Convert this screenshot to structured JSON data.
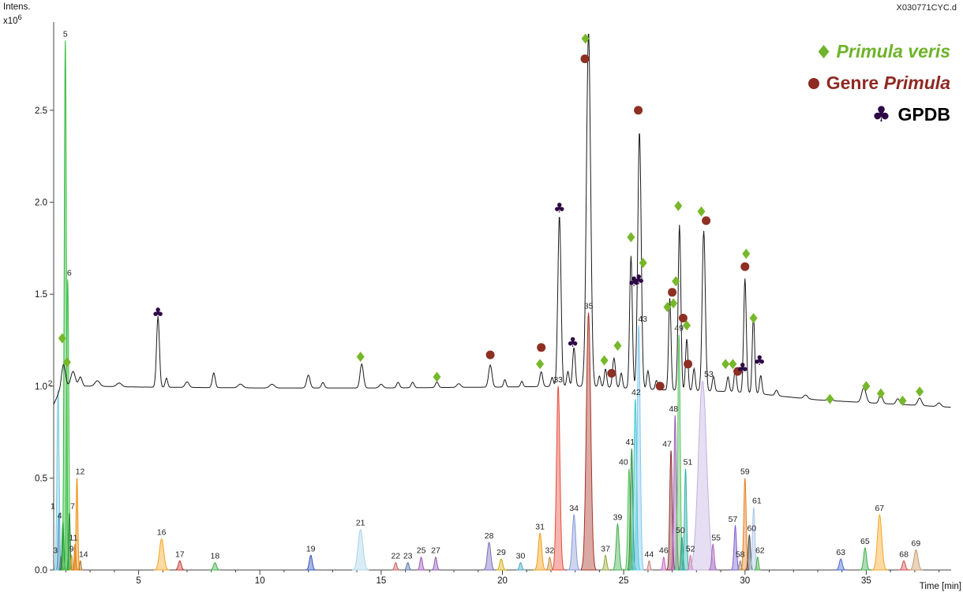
{
  "labels": {
    "y_axis": "Intens.",
    "y_scale_base": "x10",
    "y_scale_exp": "6",
    "file": "X030771CYC.d",
    "x_axis": "Time [min]"
  },
  "legend": {
    "veris_label": "Primula veris",
    "veris_color": "#6eb32a",
    "genre_prefix": "Genre ",
    "genre_name": "Primula",
    "genre_color": "#8e2a23",
    "gpdb_club": "♣",
    "gpdb_label": "GPDB",
    "gpdb_club_color": "#2d0a45",
    "gpdb_text_color": "#000000"
  },
  "chart_data": {
    "type": "line",
    "title": "",
    "xlabel": "Time [min]",
    "ylabel": "Intens. x10^6",
    "xlim": [
      1.5,
      38.5
    ],
    "ylim": [
      0,
      2.98
    ],
    "x_ticks": [
      5,
      10,
      15,
      20,
      25,
      30,
      35
    ],
    "y_ticks": [
      "0.0",
      "0.5",
      "1.0",
      "1.5",
      "2.0",
      "2.5"
    ],
    "tic_baseline": [
      [
        1.5,
        0.9
      ],
      [
        1.7,
        0.96
      ],
      [
        2.0,
        1.0
      ],
      [
        3.0,
        1.0
      ],
      [
        5.0,
        0.995
      ],
      [
        10.0,
        0.99
      ],
      [
        15.0,
        0.99
      ],
      [
        20.0,
        0.995
      ],
      [
        23.0,
        1.0
      ],
      [
        25.0,
        0.99
      ],
      [
        26.5,
        0.98
      ],
      [
        28.0,
        0.975
      ],
      [
        29.5,
        0.97
      ],
      [
        30.5,
        0.96
      ],
      [
        31.5,
        0.945
      ],
      [
        33.0,
        0.925
      ],
      [
        35.0,
        0.91
      ],
      [
        36.5,
        0.9
      ],
      [
        38.5,
        0.885
      ]
    ],
    "tic_peaks": [
      [
        1.9,
        0.13,
        0.08
      ],
      [
        2.3,
        0.08,
        0.09
      ],
      [
        2.6,
        0.05,
        0.07
      ],
      [
        3.3,
        0.03,
        0.1
      ],
      [
        4.2,
        0.02,
        0.1
      ],
      [
        5.8,
        0.38,
        0.06
      ],
      [
        6.15,
        0.05,
        0.05
      ],
      [
        7.0,
        0.03,
        0.08
      ],
      [
        8.1,
        0.08,
        0.06
      ],
      [
        9.2,
        0.02,
        0.1
      ],
      [
        10.5,
        0.02,
        0.1
      ],
      [
        12.0,
        0.07,
        0.07
      ],
      [
        12.6,
        0.03,
        0.06
      ],
      [
        14.2,
        0.13,
        0.07
      ],
      [
        15.0,
        0.02,
        0.08
      ],
      [
        15.7,
        0.03,
        0.06
      ],
      [
        16.3,
        0.03,
        0.06
      ],
      [
        17.3,
        0.03,
        0.06
      ],
      [
        18.2,
        0.02,
        0.08
      ],
      [
        19.5,
        0.12,
        0.07
      ],
      [
        20.1,
        0.04,
        0.05
      ],
      [
        20.8,
        0.03,
        0.05
      ],
      [
        21.6,
        0.08,
        0.06
      ],
      [
        22.05,
        0.05,
        0.05
      ],
      [
        22.35,
        0.93,
        0.065
      ],
      [
        22.7,
        0.08,
        0.05
      ],
      [
        22.95,
        0.21,
        0.055
      ],
      [
        23.55,
        1.93,
        0.085
      ],
      [
        24.0,
        0.06,
        0.05
      ],
      [
        24.25,
        0.1,
        0.05
      ],
      [
        24.6,
        0.16,
        0.06
      ],
      [
        24.9,
        0.08,
        0.05
      ],
      [
        25.3,
        0.72,
        0.055
      ],
      [
        25.65,
        1.4,
        0.07
      ],
      [
        26.0,
        0.1,
        0.05
      ],
      [
        26.35,
        0.05,
        0.05
      ],
      [
        26.9,
        0.5,
        0.05
      ],
      [
        27.3,
        0.9,
        0.055
      ],
      [
        27.6,
        0.28,
        0.05
      ],
      [
        27.9,
        0.12,
        0.05
      ],
      [
        28.3,
        0.87,
        0.065
      ],
      [
        28.7,
        0.08,
        0.05
      ],
      [
        29.3,
        0.08,
        0.05
      ],
      [
        29.6,
        0.13,
        0.05
      ],
      [
        30.0,
        0.62,
        0.055
      ],
      [
        30.35,
        0.42,
        0.05
      ],
      [
        30.65,
        0.1,
        0.05
      ],
      [
        31.3,
        0.03,
        0.06
      ],
      [
        32.5,
        0.02,
        0.08
      ],
      [
        33.5,
        0.02,
        0.08
      ],
      [
        34.9,
        0.08,
        0.09
      ],
      [
        35.6,
        0.05,
        0.07
      ],
      [
        36.3,
        0.03,
        0.07
      ],
      [
        37.2,
        0.04,
        0.08
      ],
      [
        38.0,
        0.02,
        0.08
      ]
    ],
    "eic_peaks": [
      {
        "n": 1,
        "t": 1.72,
        "h": 0.31,
        "w": 0.035,
        "c": "#3a64b0",
        "dx": -8
      },
      {
        "n": 2,
        "t": 1.68,
        "h": 0.98,
        "w": 0.045,
        "c": "#6fc9e0",
        "dx": -10
      },
      {
        "n": 3,
        "t": 1.8,
        "h": 0.07,
        "w": 0.03,
        "c": "#7a7a7a",
        "dx": -7
      },
      {
        "n": 4,
        "t": 1.88,
        "h": 0.26,
        "w": 0.035,
        "c": "#1f7a2e",
        "dx": -4
      },
      {
        "n": 5,
        "t": 1.98,
        "h": 2.88,
        "w": 0.045,
        "c": "#2fba3a"
      },
      {
        "n": 6,
        "t": 2.08,
        "h": 1.58,
        "w": 0.045,
        "c": "#45c24d",
        "dx": 2
      },
      {
        "n": 7,
        "t": 2.15,
        "h": 0.31,
        "w": 0.032,
        "c": "#2a8f3a",
        "dx": 4
      },
      {
        "n": 9,
        "t": 2.24,
        "h": 0.08,
        "w": 0.03,
        "c": "#c8a020"
      },
      {
        "n": 11,
        "t": 2.38,
        "h": 0.14,
        "w": 0.03,
        "c": "#d2691e",
        "dx": -2
      },
      {
        "n": 12,
        "t": 2.46,
        "h": 0.5,
        "w": 0.035,
        "c": "#f08c00",
        "dx": 4
      },
      {
        "n": 14,
        "t": 2.6,
        "h": 0.05,
        "w": 0.03,
        "c": "#b8732e",
        "dx": 4
      },
      {
        "n": 16,
        "t": 5.95,
        "h": 0.17,
        "w": 0.09,
        "c": "#f5a623"
      },
      {
        "n": 17,
        "t": 6.7,
        "h": 0.05,
        "w": 0.06,
        "c": "#c0392b"
      },
      {
        "n": 18,
        "t": 8.15,
        "h": 0.04,
        "w": 0.06,
        "c": "#3faf4a"
      },
      {
        "n": 19,
        "t": 12.1,
        "h": 0.08,
        "w": 0.06,
        "c": "#3355bb"
      },
      {
        "n": 21,
        "t": 14.15,
        "h": 0.22,
        "w": 0.1,
        "c": "#a8d4ea"
      },
      {
        "n": 22,
        "t": 15.6,
        "h": 0.04,
        "w": 0.05,
        "c": "#c06060"
      },
      {
        "n": 23,
        "t": 16.1,
        "h": 0.04,
        "w": 0.05,
        "c": "#5570aa"
      },
      {
        "n": 25,
        "t": 16.65,
        "h": 0.07,
        "w": 0.05,
        "c": "#9b59b6"
      },
      {
        "n": 27,
        "t": 17.25,
        "h": 0.07,
        "w": 0.05,
        "c": "#8e5bb5"
      },
      {
        "n": 28,
        "t": 19.45,
        "h": 0.15,
        "w": 0.07,
        "c": "#7a6bbf"
      },
      {
        "n": 29,
        "t": 19.95,
        "h": 0.06,
        "w": 0.06,
        "c": "#d4ac0d"
      },
      {
        "n": 30,
        "t": 20.75,
        "h": 0.04,
        "w": 0.05,
        "c": "#45a7c4"
      },
      {
        "n": 31,
        "t": 21.55,
        "h": 0.2,
        "w": 0.07,
        "c": "#f39c12"
      },
      {
        "n": 32,
        "t": 21.95,
        "h": 0.07,
        "w": 0.05,
        "c": "#c98b3a"
      },
      {
        "n": 33,
        "t": 22.3,
        "h": 1.0,
        "w": 0.07,
        "c": "#e74c3c"
      },
      {
        "n": 34,
        "t": 22.95,
        "h": 0.3,
        "w": 0.07,
        "c": "#8898d8"
      },
      {
        "n": 35,
        "t": 23.55,
        "h": 1.4,
        "w": 0.09,
        "c": "#a93226"
      },
      {
        "n": 37,
        "t": 24.25,
        "h": 0.08,
        "w": 0.05,
        "c": "#96a83c"
      },
      {
        "n": 39,
        "t": 24.75,
        "h": 0.25,
        "w": 0.06,
        "c": "#3fae4a"
      },
      {
        "n": 40,
        "t": 25.22,
        "h": 0.55,
        "w": 0.05,
        "c": "#52c05a",
        "dx": -7
      },
      {
        "n": 41,
        "t": 25.33,
        "h": 0.66,
        "w": 0.05,
        "c": "#2e8b3a",
        "dx": -2
      },
      {
        "n": 42,
        "t": 25.48,
        "h": 0.93,
        "w": 0.055,
        "c": "#3cc8c8",
        "dx": 1
      },
      {
        "n": 43,
        "t": 25.62,
        "h": 1.33,
        "w": 0.06,
        "c": "#7ec8f0",
        "dx": 5
      },
      {
        "n": 44,
        "t": 26.05,
        "h": 0.05,
        "w": 0.04,
        "c": "#c98080"
      },
      {
        "n": 46,
        "t": 26.65,
        "h": 0.07,
        "w": 0.04,
        "c": "#c060c0"
      },
      {
        "n": 47,
        "t": 26.95,
        "h": 0.65,
        "w": 0.05,
        "c": "#8e3030",
        "dx": -5
      },
      {
        "n": 48,
        "t": 27.12,
        "h": 0.84,
        "w": 0.05,
        "c": "#9b59b6",
        "dx": -2
      },
      {
        "n": 49,
        "t": 27.28,
        "h": 1.28,
        "w": 0.05,
        "c": "#57c45f"
      },
      {
        "n": 50,
        "t": 27.4,
        "h": 0.18,
        "w": 0.04,
        "c": "#2a9d8f",
        "dx": -2
      },
      {
        "n": 51,
        "t": 27.55,
        "h": 0.55,
        "w": 0.045,
        "c": "#30b0a8",
        "dx": 3
      },
      {
        "n": 52,
        "t": 27.75,
        "h": 0.08,
        "w": 0.04,
        "c": "#d66ba0"
      },
      {
        "n": 53,
        "t": 28.25,
        "h": 1.03,
        "w": 0.17,
        "c": "#c3b1e1",
        "dx": 8
      },
      {
        "n": 55,
        "t": 28.68,
        "h": 0.14,
        "w": 0.05,
        "c": "#a569bd",
        "dx": 4
      },
      {
        "n": 57,
        "t": 29.6,
        "h": 0.24,
        "w": 0.05,
        "c": "#7d5fd0",
        "dx": -3
      },
      {
        "n": 58,
        "t": 29.8,
        "h": 0.05,
        "w": 0.04,
        "c": "#8a8a8a"
      },
      {
        "n": 59,
        "t": 30.0,
        "h": 0.5,
        "w": 0.05,
        "c": "#e67e22"
      },
      {
        "n": 60,
        "t": 30.18,
        "h": 0.19,
        "w": 0.045,
        "c": "#444444",
        "dx": 3
      },
      {
        "n": 61,
        "t": 30.36,
        "h": 0.34,
        "w": 0.05,
        "c": "#aac4e8",
        "dx": 4
      },
      {
        "n": 62,
        "t": 30.52,
        "h": 0.07,
        "w": 0.04,
        "c": "#4cae4c",
        "dx": 3
      },
      {
        "n": 63,
        "t": 33.95,
        "h": 0.06,
        "w": 0.06,
        "c": "#4466cc"
      },
      {
        "n": 65,
        "t": 34.95,
        "h": 0.12,
        "w": 0.06,
        "c": "#3fae4a"
      },
      {
        "n": 67,
        "t": 35.55,
        "h": 0.3,
        "w": 0.09,
        "c": "#f5a623"
      },
      {
        "n": 68,
        "t": 36.55,
        "h": 0.05,
        "w": 0.06,
        "c": "#d05050"
      },
      {
        "n": 69,
        "t": 37.05,
        "h": 0.11,
        "w": 0.08,
        "c": "#c89a6a"
      }
    ],
    "markers": {
      "primula_veris": {
        "shape": "diamond",
        "color": "#76b82a",
        "points": [
          [
            1.85,
            1.26
          ],
          [
            2.05,
            1.13
          ],
          [
            14.15,
            1.16
          ],
          [
            17.3,
            1.05
          ],
          [
            21.55,
            1.12
          ],
          [
            23.42,
            2.89
          ],
          [
            24.2,
            1.14
          ],
          [
            24.75,
            1.22
          ],
          [
            25.3,
            1.81
          ],
          [
            25.8,
            1.67
          ],
          [
            26.8,
            1.43
          ],
          [
            27.05,
            1.45
          ],
          [
            27.15,
            1.57
          ],
          [
            27.25,
            1.98
          ],
          [
            27.6,
            1.33
          ],
          [
            28.2,
            1.95
          ],
          [
            29.2,
            1.12
          ],
          [
            29.5,
            1.12
          ],
          [
            30.05,
            1.72
          ],
          [
            30.35,
            1.37
          ],
          [
            33.5,
            0.93
          ],
          [
            35.0,
            1.0
          ],
          [
            35.6,
            0.96
          ],
          [
            36.5,
            0.92
          ],
          [
            37.2,
            0.97
          ]
        ]
      },
      "genre_primula": {
        "shape": "circle",
        "color": "#8e2f23",
        "points": [
          [
            19.5,
            1.17
          ],
          [
            21.6,
            1.21
          ],
          [
            23.4,
            2.78
          ],
          [
            24.5,
            1.07
          ],
          [
            25.6,
            2.5
          ],
          [
            26.5,
            1.0
          ],
          [
            27.0,
            1.51
          ],
          [
            27.45,
            1.37
          ],
          [
            27.65,
            1.12
          ],
          [
            28.4,
            1.9
          ],
          [
            29.7,
            1.08
          ],
          [
            30.0,
            1.65
          ]
        ]
      },
      "gpdb": {
        "shape": "club",
        "glyph": "♣",
        "color": "#2d0a45",
        "points": [
          [
            5.8,
            1.4
          ],
          [
            22.35,
            1.97
          ],
          [
            22.9,
            1.24
          ],
          [
            25.42,
            1.57
          ],
          [
            25.62,
            1.58
          ],
          [
            29.9,
            1.1
          ],
          [
            30.6,
            1.14
          ]
        ]
      }
    }
  }
}
